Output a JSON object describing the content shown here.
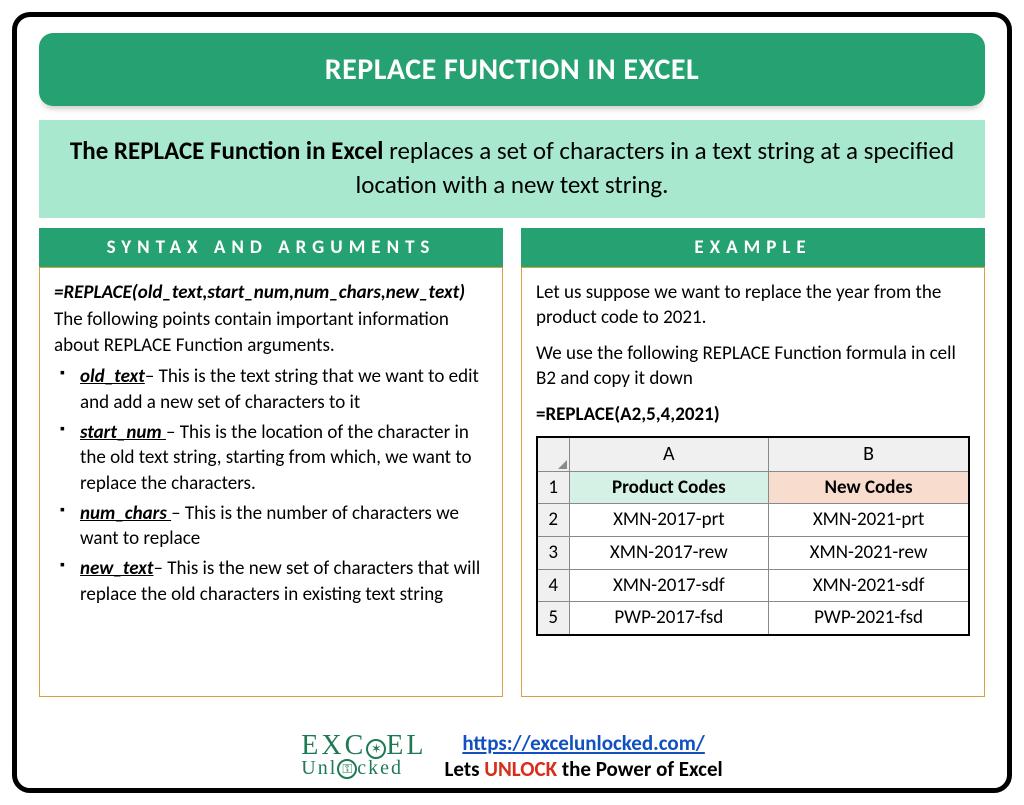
{
  "colors": {
    "primary": "#26a172",
    "lightband": "#a8e8cf",
    "borderbox": "#d6a33a",
    "link": "#1050c0",
    "unlock": "#d62e1a",
    "thA": "#d5f1e6",
    "thB": "#f8dccd"
  },
  "title": "REPLACE FUNCTION IN EXCEL",
  "description_bold": "The REPLACE Function in Excel",
  "description_rest": " replaces a set of characters in a text string at a specified location with a new text string.",
  "left": {
    "heading": "SYNTAX AND ARGUMENTS",
    "syntax": "=REPLACE(old_text,start_num,num_chars,new_text)",
    "intro": "The following points contain important information about REPLACE Function arguments.",
    "args": [
      {
        "name": "old_text",
        "desc": "– This is the text string that we want to edit and add a new set of characters to it"
      },
      {
        "name": "start_num ",
        "desc": "– This is the location of the character in the old text string, starting from which, we want to replace the characters."
      },
      {
        "name": "num_chars ",
        "desc": "– This is the number of characters we want to replace"
      },
      {
        "name": "new_text",
        "desc": "– This is the new set of characters that will replace the old characters in existing text string"
      }
    ]
  },
  "right": {
    "heading": "EXAMPLE",
    "p1": "Let us suppose we want to replace the year from the product code to 2021.",
    "p2": "We use the following REPLACE Function formula in cell B2 and copy it down",
    "formula": "=REPLACE(A2,5,4,2021)",
    "table": {
      "colA": "A",
      "colB": "B",
      "headers": [
        "Product Codes",
        "New Codes"
      ],
      "rows": [
        [
          "XMN-2017-prt",
          "XMN-2021-prt"
        ],
        [
          "XMN-2017-rew",
          "XMN-2021-rew"
        ],
        [
          "XMN-2017-sdf",
          "XMN-2021-sdf"
        ],
        [
          "PWP-2017-fsd",
          "PWP-2021-fsd"
        ]
      ]
    }
  },
  "footer": {
    "logo_row1_pre": "EXC",
    "logo_row1_post": "EL",
    "logo_row2_pre": "Unl",
    "logo_row2_post": "cked",
    "url": "https://excelunlocked.com/",
    "tagline_pre": "Lets ",
    "tagline_word": "UNLOCK",
    "tagline_post": " the Power of Excel"
  }
}
